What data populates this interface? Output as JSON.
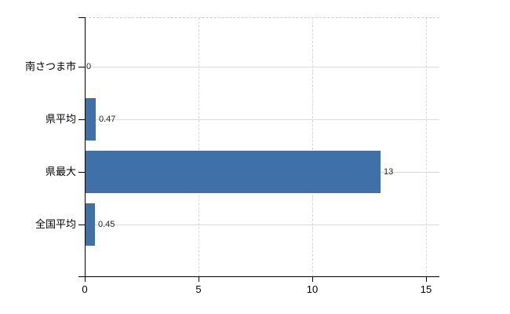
{
  "chart_data": {
    "type": "bar",
    "orientation": "horizontal",
    "title": "",
    "xlabel": "",
    "ylabel": "",
    "categories": [
      "南さつま市",
      "県平均",
      "県最大",
      "全国平均"
    ],
    "values": [
      0,
      0.47,
      13,
      0.45
    ],
    "data_labels": [
      "0",
      "0.47",
      "13",
      "0.45"
    ],
    "xtick_labels": [
      "0",
      "5",
      "10",
      "15"
    ],
    "xtick_values": [
      0,
      5,
      10,
      15
    ],
    "xlim": [
      0,
      15.6
    ],
    "grid": "on",
    "legend_position": "none",
    "colors": {
      "bar": "#4070a8",
      "axis": "#000000",
      "h_gridline": "#d8ddd5",
      "v_gridline": "#d9d9d9",
      "plot_border": "#cccccc",
      "data_label": "#262626",
      "tick_label": "#000000",
      "background": "#ffffff"
    }
  }
}
